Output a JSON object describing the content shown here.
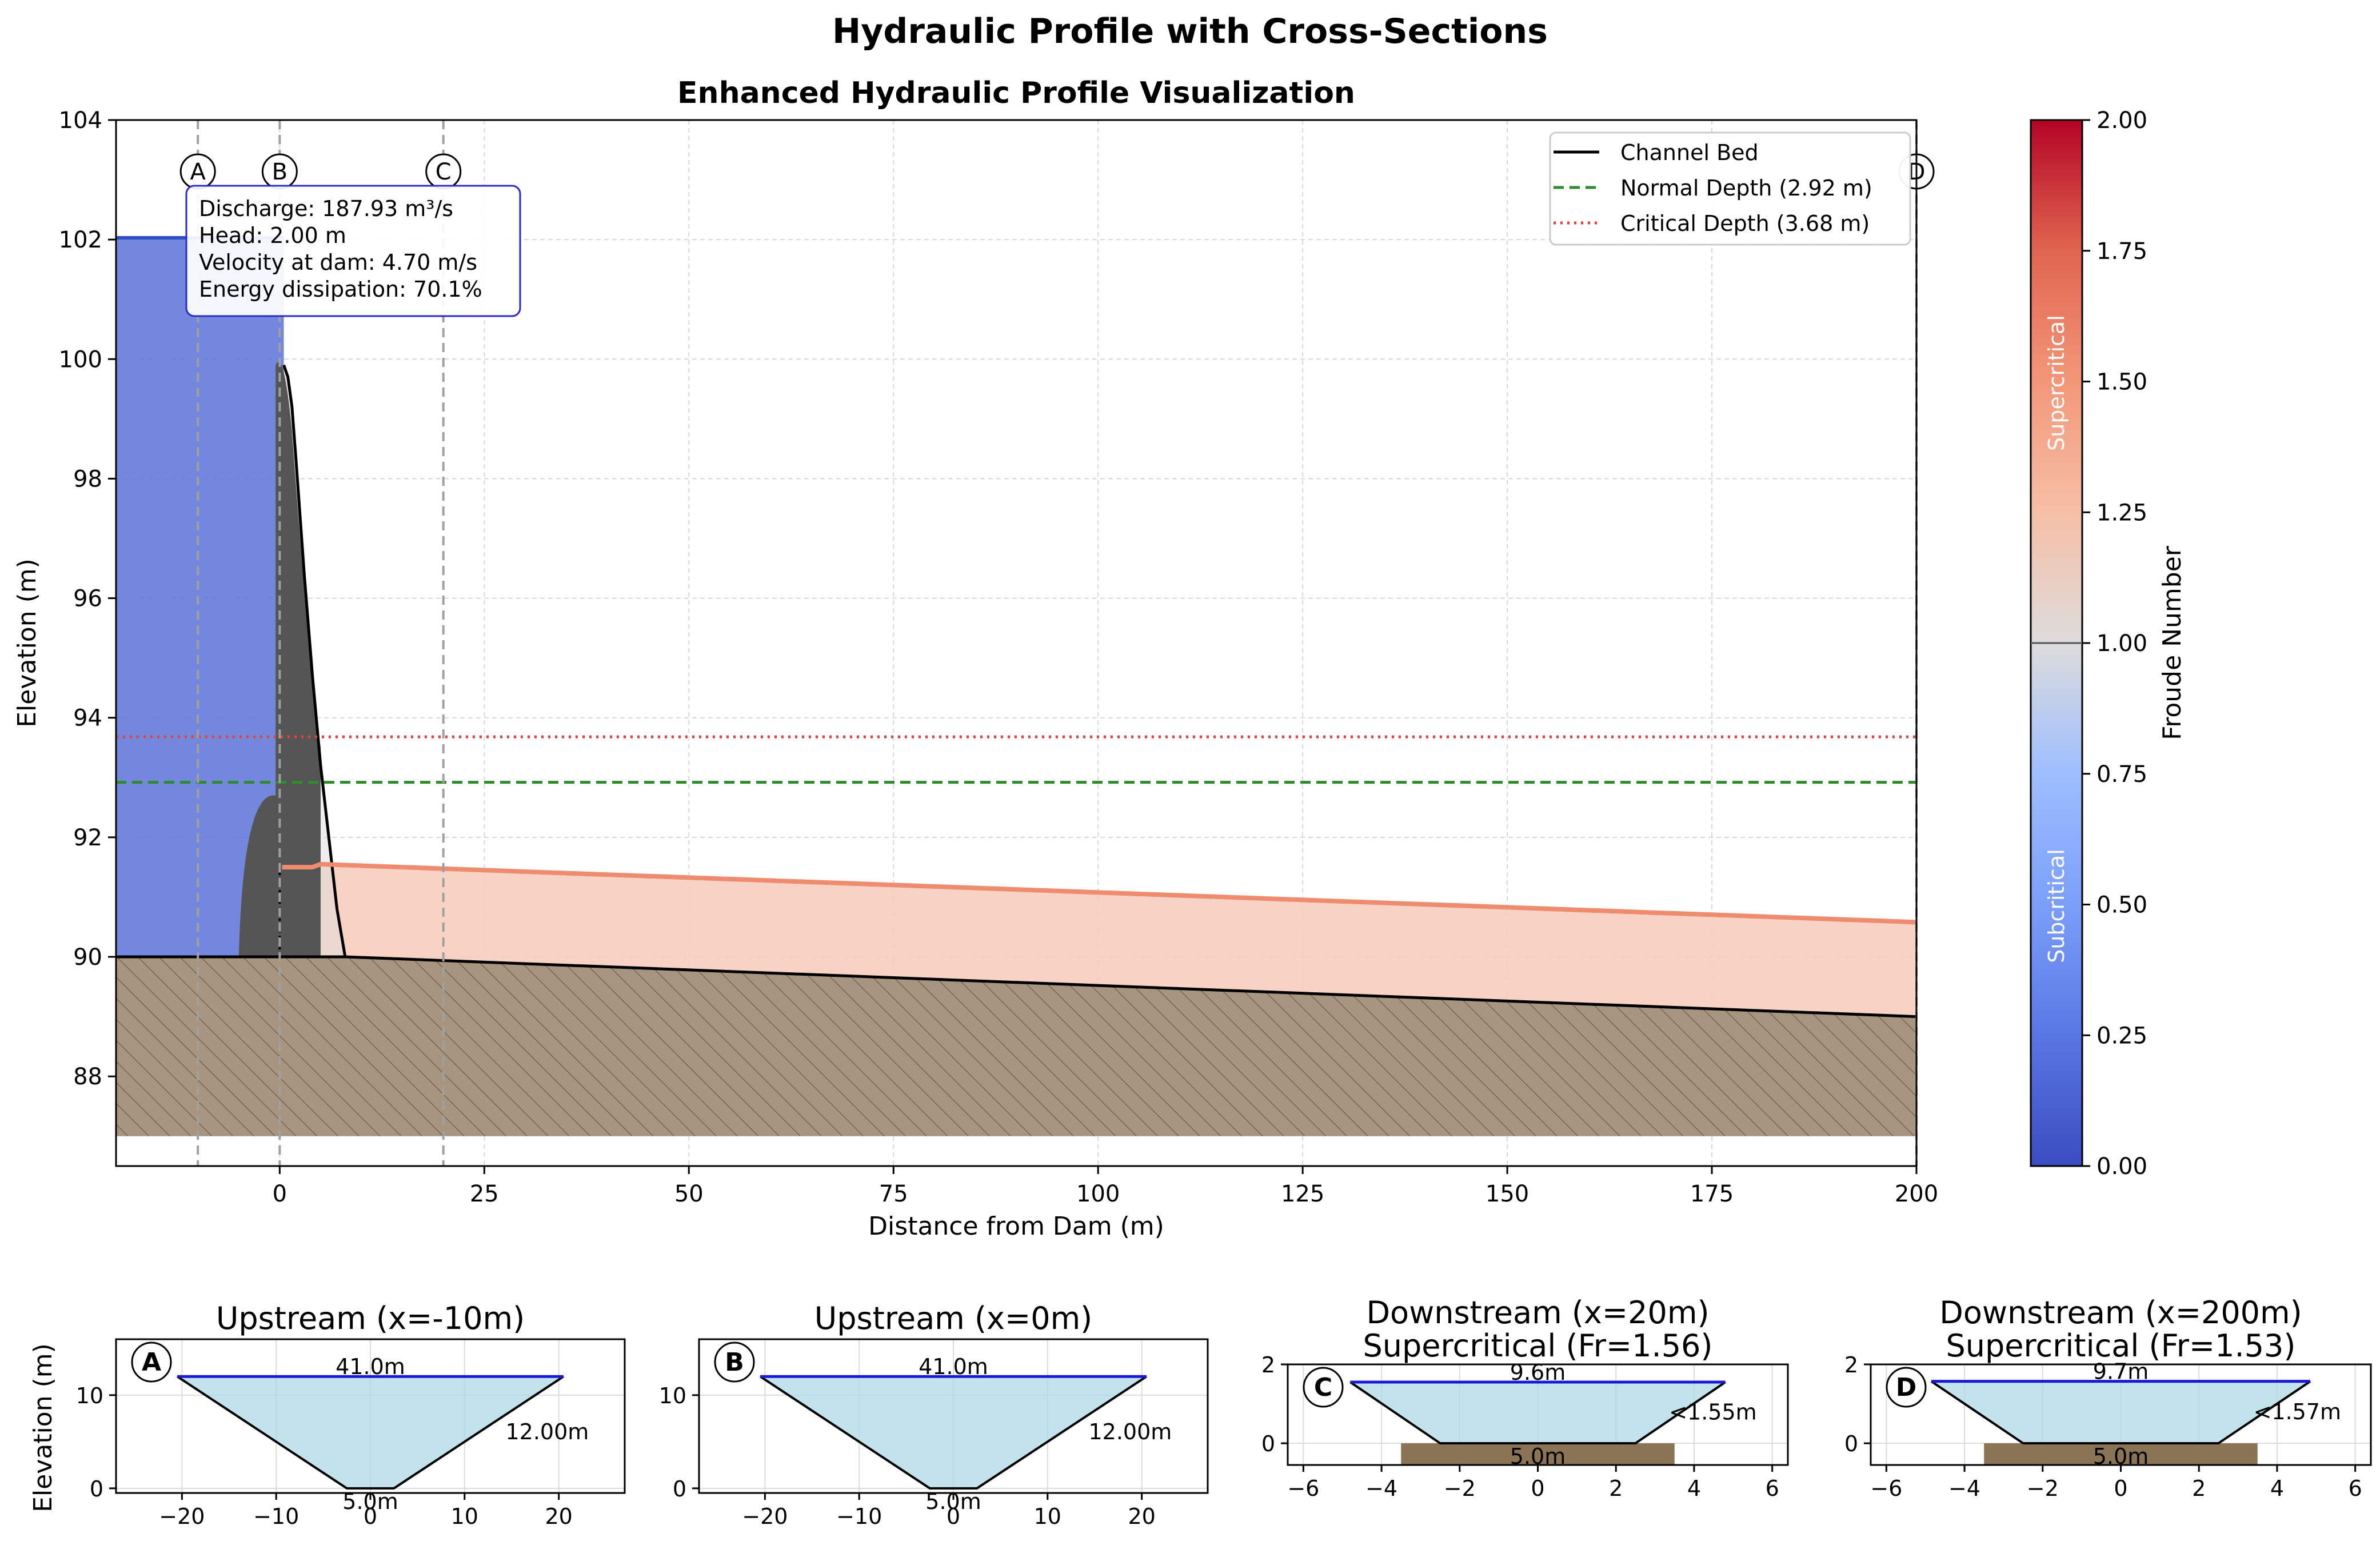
{
  "figure": {
    "suptitle": "Hydraulic Profile with Cross-Sections"
  },
  "chart_data": [
    {
      "type": "area",
      "title": "Enhanced Hydraulic Profile Visualization",
      "xlabel": "Distance from Dam (m)",
      "ylabel": "Elevation (m)",
      "xlim": [
        -20,
        200
      ],
      "ylim": [
        86.5,
        104
      ],
      "xticks": [
        0,
        25,
        50,
        75,
        100,
        125,
        150,
        175,
        200
      ],
      "yticks": [
        88,
        90,
        92,
        94,
        96,
        98,
        100,
        102,
        104
      ],
      "grid": true,
      "legend_position": "top-right",
      "series": [
        {
          "name": "Channel Bed",
          "style": "solid",
          "color": "#000000",
          "x": [
            -20,
            0,
            8,
            200
          ],
          "y": [
            90.0,
            90.0,
            90.0,
            89.0
          ]
        },
        {
          "name": "Normal Depth (2.92 m)",
          "style": "dashed",
          "color": "#2e8b2e",
          "y": 92.92
        },
        {
          "name": "Critical Depth (3.68 m)",
          "style": "dotted",
          "color": "#e8413a",
          "y": 93.68
        }
      ],
      "upstream_pool": {
        "x": [
          -20,
          0.5
        ],
        "water_surface": 102.03,
        "color": "#5a73d6"
      },
      "dam_profile": {
        "x": [
          0,
          0.5,
          1,
          1.5,
          2,
          3,
          4,
          5,
          6,
          7,
          8
        ],
        "y": [
          90.0,
          99.9,
          99.7,
          99.2,
          98.3,
          96.4,
          94.7,
          93.2,
          92.0,
          90.8,
          90.0
        ]
      },
      "downstream_water_surface": {
        "color": "#ef8b6e",
        "x": [
          0.3,
          4,
          5,
          200
        ],
        "y": [
          91.5,
          91.5,
          91.55,
          90.58
        ]
      },
      "bedrock_bottom": 87.0,
      "section_markers": [
        {
          "label": "A",
          "x": -10
        },
        {
          "label": "B",
          "x": 0
        },
        {
          "label": "C",
          "x": 20
        },
        {
          "label": "D",
          "x": 200
        }
      ],
      "annotation_box": [
        "Discharge: 187.93 m³/s",
        "Head: 2.00 m",
        "Velocity at dam: 4.70 m/s",
        "Energy dissipation: 70.1%"
      ],
      "colorbar": {
        "label": "Froude Number",
        "range": [
          0.0,
          2.0
        ],
        "ticks": [
          "0.00",
          "0.25",
          "0.50",
          "0.75",
          "1.00",
          "1.25",
          "1.50",
          "1.75",
          "2.00"
        ],
        "low_label": "Subcritical",
        "high_label": "Supercritical",
        "colormap": "coolwarm"
      }
    },
    {
      "type": "area",
      "id": "A",
      "title": "Upstream (x=-10m)",
      "subtitle": "",
      "ylabel": "Elevation (m)",
      "xlim": [
        -27,
        27
      ],
      "ylim": [
        -0.5,
        16
      ],
      "xticks": [
        -20,
        -10,
        0,
        10,
        20
      ],
      "yticks": [
        0,
        10
      ],
      "bottom_width": 5.0,
      "side_slope": 1.5,
      "depth": 12.0,
      "top_width": 41.0,
      "top_width_label": "41.0m",
      "depth_label": "12.00m",
      "bottom_label": "5.0m",
      "bed_block": false
    },
    {
      "type": "area",
      "id": "B",
      "title": "Upstream (x=0m)",
      "subtitle": "",
      "ylabel": "",
      "xlim": [
        -27,
        27
      ],
      "ylim": [
        -0.5,
        16
      ],
      "xticks": [
        -20,
        -10,
        0,
        10,
        20
      ],
      "yticks": [
        0,
        10
      ],
      "bottom_width": 5.0,
      "side_slope": 1.5,
      "depth": 12.0,
      "top_width": 41.0,
      "top_width_label": "41.0m",
      "depth_label": "12.00m",
      "bottom_label": "5.0m",
      "bed_block": false
    },
    {
      "type": "area",
      "id": "C",
      "title": "Downstream (x=20m)",
      "subtitle": "Supercritical (Fr=1.56)",
      "ylabel": "",
      "xlim": [
        -6.4,
        6.4
      ],
      "ylim": [
        -0.55,
        2.0
      ],
      "xticks": [
        -6,
        -4,
        -2,
        0,
        2,
        4,
        6
      ],
      "yticks": [
        0,
        2
      ],
      "bottom_width": 5.0,
      "side_slope": 1.5,
      "depth": 1.55,
      "top_width": 9.6,
      "top_width_label": "9.6m",
      "depth_label": "<1.55m",
      "bottom_label": "5.0m",
      "bed_block": true
    },
    {
      "type": "area",
      "id": "D",
      "title": "Downstream (x=200m)",
      "subtitle": "Supercritical (Fr=1.53)",
      "ylabel": "",
      "xlim": [
        -6.4,
        6.4
      ],
      "ylim": [
        -0.55,
        2.0
      ],
      "xticks": [
        -6,
        -4,
        -2,
        0,
        2,
        4,
        6
      ],
      "yticks": [
        0,
        2
      ],
      "bottom_width": 5.0,
      "side_slope": 1.5,
      "depth": 1.57,
      "top_width": 9.7,
      "top_width_label": "9.7m",
      "depth_label": "<1.57m",
      "bottom_label": "5.0m",
      "bed_block": true
    }
  ]
}
